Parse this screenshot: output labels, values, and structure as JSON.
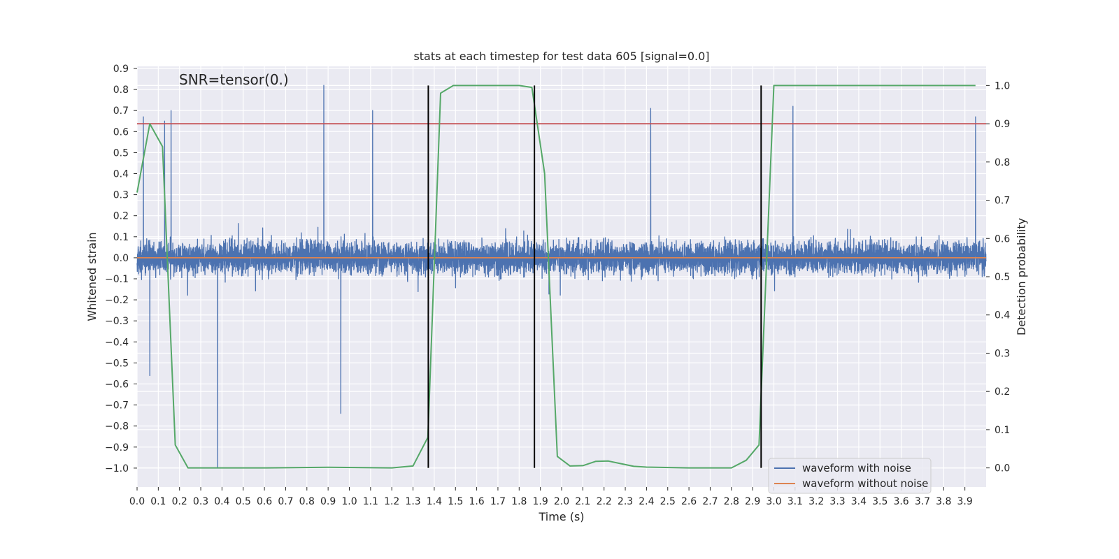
{
  "chart_data": {
    "type": "line",
    "title": "stats at each timestep for test data 605 [signal=0.0]",
    "annotation": "SNR=tensor(0.)",
    "xlabel": "Time (s)",
    "ylabel": "Whitened strain",
    "y2label": "Detection probability",
    "xlim": [
      0.0,
      4.0
    ],
    "ylim": [
      -1.09,
      0.91
    ],
    "y2lim": [
      -0.05,
      1.05
    ],
    "xticks": [
      0.0,
      0.1,
      0.2,
      0.3,
      0.4,
      0.5,
      0.6,
      0.7,
      0.8,
      0.9,
      1.0,
      1.1,
      1.2,
      1.3,
      1.4,
      1.5,
      1.6,
      1.7,
      1.8,
      1.9,
      2.0,
      2.1,
      2.2,
      2.3,
      2.4,
      2.5,
      2.6,
      2.7,
      2.8,
      2.9,
      3.0,
      3.1,
      3.2,
      3.3,
      3.4,
      3.5,
      3.6,
      3.7,
      3.8,
      3.9
    ],
    "xtick_labels": [
      "0.0",
      "0.1",
      "0.2",
      "0.3",
      "0.4",
      "0.5",
      "0.6",
      "0.7",
      "0.8",
      "0.9",
      "1.0",
      "1.1",
      "1.2",
      "1.3",
      "1.4",
      "1.5",
      "1.6",
      "1.7",
      "1.8",
      "1.9",
      "2.0",
      "2.1",
      "2.2",
      "2.3",
      "2.4",
      "2.5",
      "2.6",
      "2.7",
      "2.8",
      "2.9",
      "3.0",
      "3.1",
      "3.2",
      "3.3",
      "3.4",
      "3.5",
      "3.6",
      "3.7",
      "3.8",
      "3.9"
    ],
    "yticks": [
      0.9,
      0.8,
      0.7,
      0.6,
      0.5,
      0.4,
      0.3,
      0.2,
      0.1,
      0.0,
      -0.1,
      -0.2,
      -0.3,
      -0.4,
      -0.5,
      -0.6,
      -0.7,
      -0.8,
      -0.9,
      -1.0
    ],
    "ytick_labels": [
      "0.9",
      "0.8",
      "0.7",
      "0.6",
      "0.5",
      "0.4",
      "0.3",
      "0.2",
      "0.1",
      "0.0",
      "−0.1",
      "−0.2",
      "−0.3",
      "−0.4",
      "−0.5",
      "−0.6",
      "−0.7",
      "−0.8",
      "−0.9",
      "−1.0"
    ],
    "y2ticks": [
      1.0,
      0.9,
      0.8,
      0.7,
      0.6,
      0.5,
      0.4,
      0.3,
      0.2,
      0.1,
      0.0
    ],
    "y2tick_labels": [
      "1.0",
      "0.9",
      "0.8",
      "0.7",
      "0.6",
      "0.5",
      "0.4",
      "0.3",
      "0.2",
      "0.1",
      "0.0"
    ],
    "grid": true,
    "legend_position": "bottom-right",
    "legend": [
      {
        "name": "waveform with noise",
        "color": "#4c72b0"
      },
      {
        "name": "waveform without noise",
        "color": "#dd8452"
      }
    ],
    "series": [
      {
        "name": "waveform with noise",
        "axis": "left",
        "color": "#4c72b0",
        "style": "dense noisy trace, sampled at 2048 Hz",
        "approx_range": [
          -1.0,
          0.83
        ],
        "notable_peaks": [
          [
            0.03,
            0.67
          ],
          [
            0.06,
            -0.56
          ],
          [
            0.13,
            0.65
          ],
          [
            0.16,
            0.7
          ],
          [
            0.38,
            -1.0
          ],
          [
            0.88,
            0.82
          ],
          [
            0.96,
            -0.74
          ],
          [
            1.11,
            0.7
          ],
          [
            2.42,
            0.71
          ],
          [
            3.09,
            0.72
          ],
          [
            3.95,
            0.67
          ]
        ]
      },
      {
        "name": "waveform without noise",
        "axis": "left",
        "color": "#dd8452",
        "constant_value": 0.0
      },
      {
        "name": "detection probability",
        "axis": "right",
        "color": "#55a868",
        "x": [
          0.0,
          0.06,
          0.12,
          0.18,
          0.24,
          0.3,
          0.6,
          0.9,
          1.2,
          1.3,
          1.37,
          1.43,
          1.49,
          1.6,
          1.8,
          1.86,
          1.92,
          1.98,
          2.04,
          2.1,
          2.16,
          2.22,
          2.28,
          2.34,
          2.4,
          2.6,
          2.8,
          2.87,
          2.93,
          3.0,
          3.06,
          3.5,
          3.95
        ],
        "values": [
          0.72,
          0.9,
          0.84,
          0.06,
          0.0,
          0.0,
          0.0,
          0.0015,
          0.0,
          0.005,
          0.08,
          0.98,
          1.0,
          1.0,
          1.0,
          0.995,
          0.77,
          0.03,
          0.005,
          0.006,
          0.017,
          0.018,
          0.011,
          0.004,
          0.002,
          0.0,
          0.0,
          0.02,
          0.06,
          1.0,
          1.0,
          1.0,
          1.0
        ]
      },
      {
        "name": "threshold",
        "axis": "right",
        "color": "#c44e52",
        "constant_value": 0.9
      }
    ],
    "vertical_lines": {
      "color": "#000000",
      "x": [
        1.372,
        1.872,
        2.94
      ],
      "y2_range": [
        0.0,
        1.0
      ]
    }
  }
}
